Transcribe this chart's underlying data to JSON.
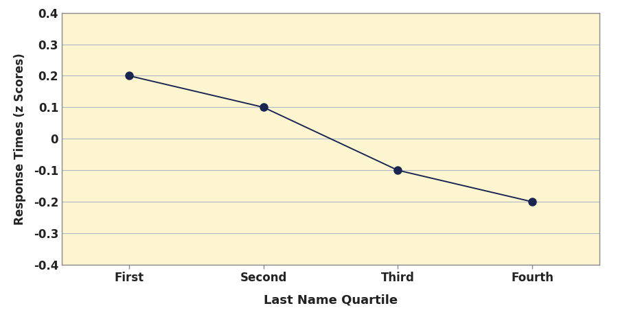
{
  "x_labels": [
    "First",
    "Second",
    "Third",
    "Fourth"
  ],
  "x_values": [
    0,
    1,
    2,
    3
  ],
  "y_values": [
    0.2,
    0.1,
    -0.1,
    -0.2
  ],
  "y_ticks": [
    -0.4,
    -0.3,
    -0.2,
    -0.1,
    0.0,
    0.1,
    0.2,
    0.3,
    0.4
  ],
  "ylim": [
    -0.4,
    0.4
  ],
  "xlabel": "Last Name Quartile",
  "ylabel": "Response Times (z Scores)",
  "line_color": "#1a2651",
  "marker_color": "#1a2651",
  "marker_size": 9,
  "line_width": 1.4,
  "plot_bg_color": "#fdf5d0",
  "fig_bg_color": "#ffffff",
  "grid_color": "#b0b8c8",
  "spine_color": "#888888",
  "xlabel_fontsize": 13,
  "ylabel_fontsize": 12,
  "tick_fontsize": 12
}
